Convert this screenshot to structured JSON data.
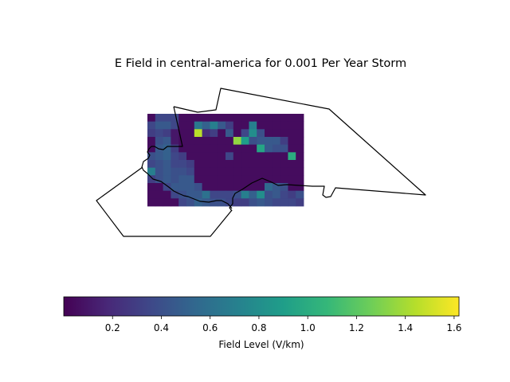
{
  "title": "E Field in central-america for 0.001 Per Year Storm",
  "colorbar": {
    "label": "Field Level (V/km)",
    "ticks": [
      0.2,
      0.4,
      0.6,
      0.8,
      1.0,
      1.2,
      1.4,
      1.6
    ],
    "tick_labels": [
      "0.2",
      "0.4",
      "0.6",
      "0.8",
      "1.0",
      "1.2",
      "1.4",
      "1.6"
    ],
    "range": [
      0.0,
      1.62
    ],
    "colormap": "viridis",
    "colors": [
      "#440154",
      "#482878",
      "#3e4989",
      "#31688e",
      "#26828e",
      "#1f9e89",
      "#35b779",
      "#6ece58",
      "#b5de2b",
      "#fde725"
    ]
  },
  "chart_data": {
    "type": "heatmap",
    "region": "central-america",
    "grid_rows": 12,
    "grid_cols": 20,
    "values": [
      [
        0.05,
        0.35,
        0.35,
        0.35,
        0.05,
        0.05,
        0.05,
        0.05,
        0.05,
        0.05,
        0.05,
        0.05,
        0.05,
        0.05,
        0.05,
        0.05,
        0.05,
        0.05,
        0.05,
        0.05
      ],
      [
        0.35,
        0.45,
        0.45,
        0.35,
        0.05,
        0.05,
        0.65,
        0.5,
        0.7,
        0.45,
        0.3,
        0.05,
        0.05,
        0.7,
        0.05,
        0.05,
        0.05,
        0.05,
        0.05,
        0.05
      ],
      [
        0.3,
        0.35,
        0.3,
        0.1,
        0.05,
        0.05,
        1.45,
        0.2,
        0.3,
        0.05,
        0.45,
        0.05,
        0.35,
        0.8,
        0.4,
        0.05,
        0.05,
        0.05,
        0.05,
        0.05
      ],
      [
        0.05,
        0.4,
        0.45,
        0.1,
        0.05,
        0.05,
        0.05,
        0.05,
        0.05,
        0.05,
        0.05,
        1.35,
        0.9,
        0.4,
        0.45,
        0.45,
        0.45,
        0.3,
        0.05,
        0.05
      ],
      [
        0.05,
        0.45,
        0.5,
        0.3,
        0.05,
        0.05,
        0.05,
        0.05,
        0.05,
        0.05,
        0.05,
        0.05,
        0.05,
        0.05,
        0.95,
        0.45,
        0.4,
        0.4,
        0.05,
        0.05
      ],
      [
        0.4,
        0.45,
        0.5,
        0.35,
        0.3,
        0.05,
        0.05,
        0.05,
        0.05,
        0.05,
        0.35,
        0.05,
        0.05,
        0.05,
        0.05,
        0.05,
        0.05,
        0.05,
        1.0,
        0.05
      ],
      [
        0.35,
        0.4,
        0.45,
        0.35,
        0.35,
        0.3,
        0.05,
        0.05,
        0.05,
        0.05,
        0.05,
        0.05,
        0.05,
        0.05,
        0.05,
        0.05,
        0.05,
        0.05,
        0.05,
        0.05
      ],
      [
        0.7,
        0.4,
        0.45,
        0.4,
        0.4,
        0.35,
        0.05,
        0.05,
        0.05,
        0.05,
        0.05,
        0.05,
        0.05,
        0.05,
        0.05,
        0.05,
        0.05,
        0.05,
        0.05,
        0.05
      ],
      [
        0.3,
        0.4,
        0.45,
        0.4,
        0.45,
        0.45,
        0.05,
        0.05,
        0.05,
        0.05,
        0.05,
        0.05,
        0.05,
        0.05,
        0.05,
        0.05,
        0.05,
        0.05,
        0.05,
        0.05
      ],
      [
        0.05,
        0.05,
        0.35,
        0.45,
        0.45,
        0.45,
        0.4,
        0.05,
        0.05,
        0.05,
        0.05,
        0.05,
        0.05,
        0.05,
        0.05,
        0.55,
        0.45,
        0.4,
        0.05,
        0.05
      ],
      [
        0.05,
        0.05,
        0.05,
        0.35,
        0.4,
        0.45,
        0.45,
        0.6,
        0.35,
        0.35,
        0.35,
        0.4,
        0.7,
        0.5,
        0.8,
        0.4,
        0.45,
        0.35,
        0.3,
        0.4
      ],
      [
        0.05,
        0.05,
        0.05,
        0.05,
        0.35,
        0.4,
        0.5,
        0.45,
        0.4,
        0.4,
        0.35,
        0.3,
        0.3,
        0.4,
        0.45,
        0.4,
        0.35,
        0.35,
        0.35,
        0.3
      ]
    ]
  }
}
